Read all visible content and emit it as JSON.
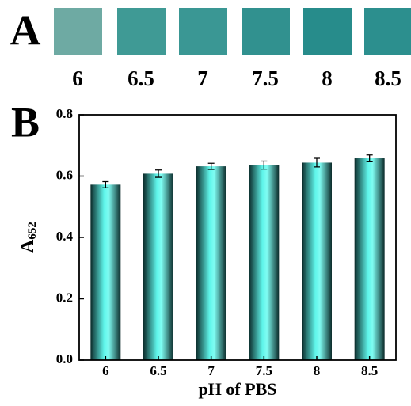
{
  "panel_a": {
    "label": "A",
    "samples": [
      "6",
      "6.5",
      "7",
      "7.5",
      "8",
      "8.5"
    ],
    "swatch_colors": [
      "#6eaaa3",
      "#3f9a95",
      "#3a9794",
      "#31918f",
      "#278c8b",
      "#2c8f8e"
    ]
  },
  "chart_data": {
    "type": "bar",
    "panel_label": "B",
    "categories": [
      "6",
      "6.5",
      "7",
      "7.5",
      "8",
      "8.5"
    ],
    "values": [
      0.572,
      0.608,
      0.632,
      0.636,
      0.644,
      0.658
    ],
    "errors": [
      0.01,
      0.012,
      0.01,
      0.013,
      0.014,
      0.011
    ],
    "color": "#5ff5ea",
    "ylim": [
      0,
      0.8
    ],
    "yticks": [
      {
        "value": 0,
        "label": "0.0"
      },
      {
        "value": 0.2,
        "label": "0.2"
      },
      {
        "value": 0.4,
        "label": "0.4"
      },
      {
        "value": 0.6,
        "label": "0.6"
      },
      {
        "value": 0.8,
        "label": "0.8"
      }
    ],
    "xlabel": "pH of PBS",
    "ylabel": "A",
    "ylabel_subscript": "652"
  }
}
